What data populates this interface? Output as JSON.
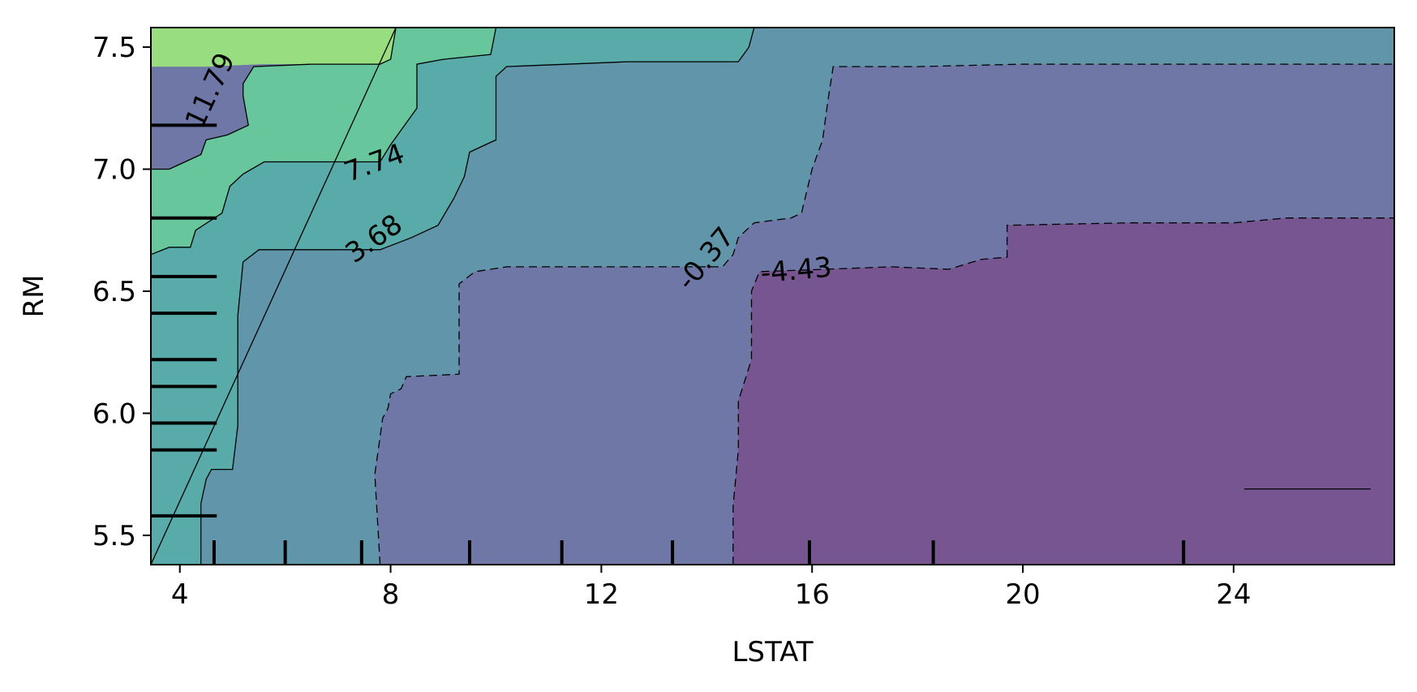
{
  "chart_data": {
    "type": "contour",
    "xlabel": "LSTAT",
    "ylabel": "RM",
    "xlim": [
      3.45,
      27.05
    ],
    "ylim": [
      5.38,
      7.58
    ],
    "xticks": [
      {
        "value": 4,
        "label": "4"
      },
      {
        "value": 8,
        "label": "8"
      },
      {
        "value": 12,
        "label": "12"
      },
      {
        "value": 16,
        "label": "16"
      },
      {
        "value": 20,
        "label": "20"
      },
      {
        "value": 24,
        "label": "24"
      }
    ],
    "yticks": [
      {
        "value": 5.5,
        "label": "5.5"
      },
      {
        "value": 6.0,
        "label": "6.0"
      },
      {
        "value": 6.5,
        "label": "6.5"
      },
      {
        "value": 7.0,
        "label": "7.0"
      },
      {
        "value": 7.5,
        "label": "7.5"
      }
    ],
    "levels": [
      {
        "value": -4.43,
        "label": "-4.43",
        "color": "#765590",
        "line": "dashed",
        "label_x": 15.7,
        "label_y": 6.58,
        "label_angle": -5
      },
      {
        "value": -0.37,
        "label": "-0.37",
        "color": "#6e77a6",
        "line": "dashed",
        "label_x": 14.0,
        "label_y": 6.63,
        "label_angle": -50
      },
      {
        "value": 3.68,
        "label": "3.68",
        "color": "#6196aa",
        "line": "solid",
        "label_x": 7.7,
        "label_y": 6.71,
        "label_angle": -35
      },
      {
        "value": 7.74,
        "label": "7.74",
        "color": "#58aba9",
        "line": "solid",
        "label_x": 7.7,
        "label_y": 7.02,
        "label_angle": -20
      },
      {
        "value": 11.79,
        "label": "11.79",
        "color": "#67c69c",
        "line": "solid",
        "label_x": 4.6,
        "label_y": 7.32,
        "label_angle": -65
      }
    ],
    "extra_fill_colors": [
      "#99dd81",
      "#d9e651"
    ],
    "regions": [
      {
        "level_index": 0,
        "boundary": [
          [
            14.5,
            5.38
          ],
          [
            14.5,
            5.62
          ],
          [
            14.6,
            5.85
          ],
          [
            14.6,
            6.05
          ],
          [
            14.85,
            6.22
          ],
          [
            14.85,
            6.5
          ],
          [
            15.0,
            6.58
          ],
          [
            17.5,
            6.6
          ],
          [
            18.6,
            6.59
          ],
          [
            19.2,
            6.63
          ],
          [
            19.7,
            6.64
          ],
          [
            19.7,
            6.77
          ],
          [
            22.0,
            6.78
          ],
          [
            24.0,
            6.78
          ],
          [
            25.0,
            6.8
          ],
          [
            27.05,
            6.8
          ],
          [
            27.05,
            5.38
          ]
        ]
      },
      {
        "level_index": 1,
        "boundary": [
          [
            7.8,
            5.38
          ],
          [
            7.7,
            5.75
          ],
          [
            7.85,
            5.98
          ],
          [
            7.95,
            6.02
          ],
          [
            8.0,
            6.08
          ],
          [
            8.2,
            6.1
          ],
          [
            8.3,
            6.15
          ],
          [
            9.3,
            6.16
          ],
          [
            9.3,
            6.53
          ],
          [
            9.6,
            6.58
          ],
          [
            10.2,
            6.6
          ],
          [
            14.3,
            6.6
          ],
          [
            14.5,
            6.65
          ],
          [
            14.6,
            6.72
          ],
          [
            14.9,
            6.78
          ],
          [
            15.6,
            6.8
          ],
          [
            15.8,
            6.82
          ],
          [
            16.0,
            7.0
          ],
          [
            16.2,
            7.12
          ],
          [
            16.3,
            7.28
          ],
          [
            16.4,
            7.42
          ],
          [
            18.0,
            7.42
          ],
          [
            20.0,
            7.43
          ],
          [
            23.0,
            7.43
          ],
          [
            27.05,
            7.43
          ],
          [
            27.05,
            5.38
          ]
        ]
      },
      {
        "level_index": 2,
        "boundary": [
          [
            4.4,
            5.38
          ],
          [
            4.4,
            5.63
          ],
          [
            4.5,
            5.73
          ],
          [
            4.6,
            5.77
          ],
          [
            5.0,
            5.77
          ],
          [
            5.1,
            5.95
          ],
          [
            5.1,
            6.4
          ],
          [
            5.2,
            6.62
          ],
          [
            5.5,
            6.67
          ],
          [
            7.8,
            6.67
          ],
          [
            8.4,
            6.72
          ],
          [
            8.9,
            6.77
          ],
          [
            9.2,
            6.88
          ],
          [
            9.4,
            6.97
          ],
          [
            9.5,
            7.07
          ],
          [
            10.0,
            7.12
          ],
          [
            10.0,
            7.38
          ],
          [
            10.2,
            7.42
          ],
          [
            12.5,
            7.44
          ],
          [
            14.6,
            7.44
          ],
          [
            14.8,
            7.5
          ],
          [
            14.9,
            7.58
          ],
          [
            27.05,
            7.58
          ],
          [
            27.05,
            5.38
          ]
        ]
      },
      {
        "level_index": 3,
        "boundary": [
          [
            3.45,
            5.38
          ],
          [
            3.45,
            6.65
          ],
          [
            3.8,
            6.68
          ],
          [
            4.2,
            6.68
          ],
          [
            4.3,
            6.75
          ],
          [
            4.8,
            6.82
          ],
          [
            4.95,
            6.93
          ],
          [
            5.2,
            6.98
          ],
          [
            5.6,
            7.03
          ],
          [
            7.8,
            7.03
          ],
          [
            8.0,
            7.1
          ],
          [
            8.2,
            7.16
          ],
          [
            8.5,
            7.25
          ],
          [
            8.5,
            7.43
          ],
          [
            9.0,
            7.45
          ],
          [
            9.9,
            7.47
          ],
          [
            10.0,
            7.58
          ],
          [
            27.05,
            7.58
          ],
          [
            27.05,
            5.38
          ]
        ]
      },
      {
        "level_index": 4,
        "boundary": [
          [
            3.45,
            6.68
          ],
          [
            3.45,
            7.0
          ],
          [
            3.8,
            7.0
          ],
          [
            4.0,
            7.02
          ],
          [
            4.4,
            7.06
          ],
          [
            4.5,
            7.12
          ],
          [
            4.9,
            7.14
          ],
          [
            5.3,
            7.18
          ],
          [
            5.2,
            7.3
          ],
          [
            5.2,
            7.35
          ],
          [
            5.4,
            7.42
          ],
          [
            6.5,
            7.43
          ],
          [
            6.9,
            7.43
          ],
          [
            7.8,
            7.43
          ],
          [
            8.0,
            7.45
          ],
          [
            8.1,
            7.58
          ],
          [
            27.05,
            7.58
          ],
          [
            27.05,
            5.38
          ],
          [
            3.45,
            5.38
          ]
        ]
      },
      {
        "level_index": 5,
        "boundary": [
          [
            3.45,
            7.0
          ],
          [
            3.45,
            7.42
          ],
          [
            4.5,
            7.42
          ],
          [
            5.5,
            7.43
          ],
          [
            6.5,
            7.43
          ],
          [
            7.8,
            7.43
          ],
          [
            8.0,
            7.45
          ],
          [
            8.1,
            7.58
          ],
          [
            3.45,
            7.58
          ]
        ]
      },
      {
        "level_index": 6,
        "boundary": [
          [
            3.45,
            7.42
          ],
          [
            3.45,
            7.58
          ],
          [
            5.5,
            7.58
          ],
          [
            5.5,
            7.43
          ],
          [
            4.5,
            7.42
          ]
        ]
      }
    ],
    "x_deciles": [
      4.65,
      6.0,
      7.45,
      9.5,
      11.25,
      13.35,
      15.95,
      18.3,
      23.05
    ],
    "y_deciles": [
      5.58,
      5.85,
      5.96,
      6.11,
      6.22,
      6.41,
      6.56,
      6.8,
      7.18
    ],
    "grid": false
  }
}
